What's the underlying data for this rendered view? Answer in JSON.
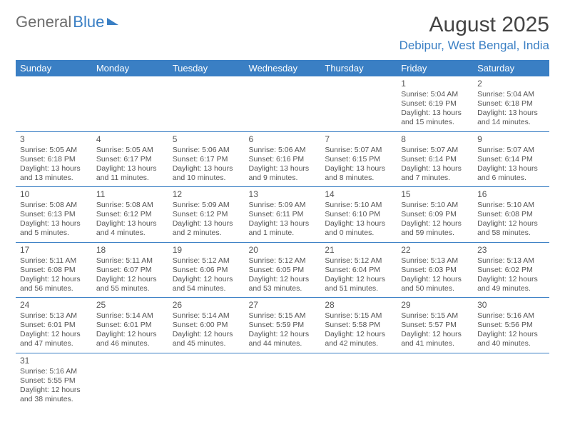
{
  "logo": {
    "part1": "General",
    "part2": "Blue"
  },
  "title": {
    "month": "August 2025",
    "location": "Debipur, West Bengal, India"
  },
  "colors": {
    "accent": "#3a7fc4",
    "text": "#555555",
    "header_text": "#ffffff",
    "bg": "#ffffff"
  },
  "font": {
    "body_pt": 10.5,
    "title_pt": 30,
    "loc_pt": 17,
    "th_pt": 13,
    "dnum_pt": 12
  },
  "weekdays": [
    "Sunday",
    "Monday",
    "Tuesday",
    "Wednesday",
    "Thursday",
    "Friday",
    "Saturday"
  ],
  "weeks": [
    [
      null,
      null,
      null,
      null,
      null,
      {
        "d": "1",
        "sr": "Sunrise: 5:04 AM",
        "ss": "Sunset: 6:19 PM",
        "dl1": "Daylight: 13 hours",
        "dl2": "and 15 minutes."
      },
      {
        "d": "2",
        "sr": "Sunrise: 5:04 AM",
        "ss": "Sunset: 6:18 PM",
        "dl1": "Daylight: 13 hours",
        "dl2": "and 14 minutes."
      }
    ],
    [
      {
        "d": "3",
        "sr": "Sunrise: 5:05 AM",
        "ss": "Sunset: 6:18 PM",
        "dl1": "Daylight: 13 hours",
        "dl2": "and 13 minutes."
      },
      {
        "d": "4",
        "sr": "Sunrise: 5:05 AM",
        "ss": "Sunset: 6:17 PM",
        "dl1": "Daylight: 13 hours",
        "dl2": "and 11 minutes."
      },
      {
        "d": "5",
        "sr": "Sunrise: 5:06 AM",
        "ss": "Sunset: 6:17 PM",
        "dl1": "Daylight: 13 hours",
        "dl2": "and 10 minutes."
      },
      {
        "d": "6",
        "sr": "Sunrise: 5:06 AM",
        "ss": "Sunset: 6:16 PM",
        "dl1": "Daylight: 13 hours",
        "dl2": "and 9 minutes."
      },
      {
        "d": "7",
        "sr": "Sunrise: 5:07 AM",
        "ss": "Sunset: 6:15 PM",
        "dl1": "Daylight: 13 hours",
        "dl2": "and 8 minutes."
      },
      {
        "d": "8",
        "sr": "Sunrise: 5:07 AM",
        "ss": "Sunset: 6:14 PM",
        "dl1": "Daylight: 13 hours",
        "dl2": "and 7 minutes."
      },
      {
        "d": "9",
        "sr": "Sunrise: 5:07 AM",
        "ss": "Sunset: 6:14 PM",
        "dl1": "Daylight: 13 hours",
        "dl2": "and 6 minutes."
      }
    ],
    [
      {
        "d": "10",
        "sr": "Sunrise: 5:08 AM",
        "ss": "Sunset: 6:13 PM",
        "dl1": "Daylight: 13 hours",
        "dl2": "and 5 minutes."
      },
      {
        "d": "11",
        "sr": "Sunrise: 5:08 AM",
        "ss": "Sunset: 6:12 PM",
        "dl1": "Daylight: 13 hours",
        "dl2": "and 4 minutes."
      },
      {
        "d": "12",
        "sr": "Sunrise: 5:09 AM",
        "ss": "Sunset: 6:12 PM",
        "dl1": "Daylight: 13 hours",
        "dl2": "and 2 minutes."
      },
      {
        "d": "13",
        "sr": "Sunrise: 5:09 AM",
        "ss": "Sunset: 6:11 PM",
        "dl1": "Daylight: 13 hours",
        "dl2": "and 1 minute."
      },
      {
        "d": "14",
        "sr": "Sunrise: 5:10 AM",
        "ss": "Sunset: 6:10 PM",
        "dl1": "Daylight: 13 hours",
        "dl2": "and 0 minutes."
      },
      {
        "d": "15",
        "sr": "Sunrise: 5:10 AM",
        "ss": "Sunset: 6:09 PM",
        "dl1": "Daylight: 12 hours",
        "dl2": "and 59 minutes."
      },
      {
        "d": "16",
        "sr": "Sunrise: 5:10 AM",
        "ss": "Sunset: 6:08 PM",
        "dl1": "Daylight: 12 hours",
        "dl2": "and 58 minutes."
      }
    ],
    [
      {
        "d": "17",
        "sr": "Sunrise: 5:11 AM",
        "ss": "Sunset: 6:08 PM",
        "dl1": "Daylight: 12 hours",
        "dl2": "and 56 minutes."
      },
      {
        "d": "18",
        "sr": "Sunrise: 5:11 AM",
        "ss": "Sunset: 6:07 PM",
        "dl1": "Daylight: 12 hours",
        "dl2": "and 55 minutes."
      },
      {
        "d": "19",
        "sr": "Sunrise: 5:12 AM",
        "ss": "Sunset: 6:06 PM",
        "dl1": "Daylight: 12 hours",
        "dl2": "and 54 minutes."
      },
      {
        "d": "20",
        "sr": "Sunrise: 5:12 AM",
        "ss": "Sunset: 6:05 PM",
        "dl1": "Daylight: 12 hours",
        "dl2": "and 53 minutes."
      },
      {
        "d": "21",
        "sr": "Sunrise: 5:12 AM",
        "ss": "Sunset: 6:04 PM",
        "dl1": "Daylight: 12 hours",
        "dl2": "and 51 minutes."
      },
      {
        "d": "22",
        "sr": "Sunrise: 5:13 AM",
        "ss": "Sunset: 6:03 PM",
        "dl1": "Daylight: 12 hours",
        "dl2": "and 50 minutes."
      },
      {
        "d": "23",
        "sr": "Sunrise: 5:13 AM",
        "ss": "Sunset: 6:02 PM",
        "dl1": "Daylight: 12 hours",
        "dl2": "and 49 minutes."
      }
    ],
    [
      {
        "d": "24",
        "sr": "Sunrise: 5:13 AM",
        "ss": "Sunset: 6:01 PM",
        "dl1": "Daylight: 12 hours",
        "dl2": "and 47 minutes."
      },
      {
        "d": "25",
        "sr": "Sunrise: 5:14 AM",
        "ss": "Sunset: 6:01 PM",
        "dl1": "Daylight: 12 hours",
        "dl2": "and 46 minutes."
      },
      {
        "d": "26",
        "sr": "Sunrise: 5:14 AM",
        "ss": "Sunset: 6:00 PM",
        "dl1": "Daylight: 12 hours",
        "dl2": "and 45 minutes."
      },
      {
        "d": "27",
        "sr": "Sunrise: 5:15 AM",
        "ss": "Sunset: 5:59 PM",
        "dl1": "Daylight: 12 hours",
        "dl2": "and 44 minutes."
      },
      {
        "d": "28",
        "sr": "Sunrise: 5:15 AM",
        "ss": "Sunset: 5:58 PM",
        "dl1": "Daylight: 12 hours",
        "dl2": "and 42 minutes."
      },
      {
        "d": "29",
        "sr": "Sunrise: 5:15 AM",
        "ss": "Sunset: 5:57 PM",
        "dl1": "Daylight: 12 hours",
        "dl2": "and 41 minutes."
      },
      {
        "d": "30",
        "sr": "Sunrise: 5:16 AM",
        "ss": "Sunset: 5:56 PM",
        "dl1": "Daylight: 12 hours",
        "dl2": "and 40 minutes."
      }
    ],
    [
      {
        "d": "31",
        "sr": "Sunrise: 5:16 AM",
        "ss": "Sunset: 5:55 PM",
        "dl1": "Daylight: 12 hours",
        "dl2": "and 38 minutes."
      },
      null,
      null,
      null,
      null,
      null,
      null
    ]
  ]
}
